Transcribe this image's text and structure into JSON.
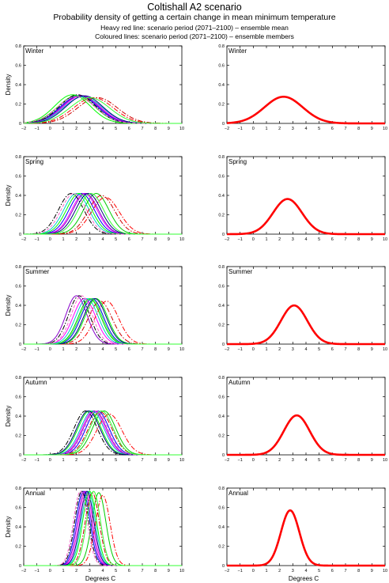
{
  "title": "Coltishall A2 scenario",
  "subtitle": "Probability density of getting a certain change in mean minimum temperature",
  "note_heavy": "Heavy red line: scenario period (2071–2100) – ensemble mean",
  "note_coloured": "Coloured lines: scenario period (2071–2100) – ensemble members",
  "colors": {
    "mean": "#ff0000",
    "members": [
      "#00cc00",
      "#0000ff",
      "#ff00ff",
      "#00cccc",
      "#000000",
      "#ff0000",
      "#8800cc",
      "#cc0000",
      "#00ff00",
      "#000080",
      "#ff66cc",
      "#33ff33"
    ]
  },
  "chart_data": [
    {
      "type": "line",
      "panel": "members",
      "season": "Winter",
      "ylabel": "Density",
      "xlabel": "",
      "xlim": [
        -2,
        10
      ],
      "ylim": [
        0,
        0.8
      ],
      "xticks": [
        "−2",
        "−1",
        "0",
        "1",
        "2",
        "3",
        "4",
        "5",
        "6",
        "7",
        "8",
        "9",
        "10"
      ],
      "yticks": [
        "0",
        "0.2",
        "0.4",
        "0.6",
        "0.8"
      ],
      "members": [
        {
          "mu": 2.0,
          "sigma": 1.4
        },
        {
          "mu": 2.2,
          "sigma": 1.4
        },
        {
          "mu": 2.4,
          "sigma": 1.4
        },
        {
          "mu": 2.5,
          "sigma": 1.45
        },
        {
          "mu": 2.1,
          "sigma": 1.35
        },
        {
          "mu": 3.3,
          "sigma": 1.5
        },
        {
          "mu": 2.3,
          "sigma": 1.4
        },
        {
          "mu": 3.6,
          "sigma": 1.5
        },
        {
          "mu": 1.7,
          "sigma": 1.35
        },
        {
          "mu": 2.6,
          "sigma": 1.4
        },
        {
          "mu": 2.0,
          "sigma": 1.45
        },
        {
          "mu": 3.0,
          "sigma": 1.5
        }
      ]
    },
    {
      "type": "line",
      "panel": "mean",
      "season": "Winter",
      "ylabel": "",
      "xlabel": "",
      "xlim": [
        -2,
        10
      ],
      "ylim": [
        0,
        0.8
      ],
      "xticks": [
        "−2",
        "−1",
        "0",
        "1",
        "2",
        "3",
        "4",
        "5",
        "6",
        "7",
        "8",
        "9",
        "10"
      ],
      "yticks": [
        "0",
        "0.2",
        "0.4",
        "0.6",
        "0.8"
      ],
      "mean": {
        "mu": 2.3,
        "sigma": 1.45
      }
    },
    {
      "type": "line",
      "panel": "members",
      "season": "Spring",
      "ylabel": "Density",
      "xlabel": "",
      "xlim": [
        -2,
        10
      ],
      "ylim": [
        0,
        0.8
      ],
      "xticks": [
        "−2",
        "−1",
        "0",
        "1",
        "2",
        "3",
        "4",
        "5",
        "6",
        "7",
        "8",
        "9",
        "10"
      ],
      "yticks": [
        "0",
        "0.2",
        "0.4",
        "0.6",
        "0.8"
      ],
      "members": [
        {
          "mu": 3.5,
          "sigma": 0.95
        },
        {
          "mu": 2.4,
          "sigma": 0.95
        },
        {
          "mu": 2.6,
          "sigma": 0.95
        },
        {
          "mu": 2.0,
          "sigma": 0.95
        },
        {
          "mu": 1.6,
          "sigma": 0.95
        },
        {
          "mu": 4.2,
          "sigma": 1.05
        },
        {
          "mu": 2.7,
          "sigma": 0.95
        },
        {
          "mu": 3.9,
          "sigma": 1.0
        },
        {
          "mu": 2.2,
          "sigma": 0.95
        },
        {
          "mu": 2.9,
          "sigma": 0.95
        },
        {
          "mu": 1.8,
          "sigma": 0.95
        },
        {
          "mu": 3.1,
          "sigma": 0.95
        }
      ]
    },
    {
      "type": "line",
      "panel": "mean",
      "season": "Spring",
      "ylabel": "",
      "xlabel": "",
      "xlim": [
        -2,
        10
      ],
      "ylim": [
        0,
        0.8
      ],
      "xticks": [
        "−2",
        "−1",
        "0",
        "1",
        "2",
        "3",
        "4",
        "5",
        "6",
        "7",
        "8",
        "9",
        "10"
      ],
      "yticks": [
        "0",
        "0.2",
        "0.4",
        "0.6",
        "0.8"
      ],
      "mean": {
        "mu": 2.6,
        "sigma": 1.1
      }
    },
    {
      "type": "line",
      "panel": "members",
      "season": "Summer",
      "ylabel": "Density",
      "xlabel": "",
      "xlim": [
        -2,
        10
      ],
      "ylim": [
        0,
        0.8
      ],
      "xticks": [
        "−2",
        "−1",
        "0",
        "1",
        "2",
        "3",
        "4",
        "5",
        "6",
        "7",
        "8",
        "9",
        "10"
      ],
      "yticks": [
        "0",
        "0.2",
        "0.4",
        "0.6",
        "0.8"
      ],
      "members": [
        {
          "mu": 3.0,
          "sigma": 0.85
        },
        {
          "mu": 3.2,
          "sigma": 0.85
        },
        {
          "mu": 2.6,
          "sigma": 0.85
        },
        {
          "mu": 2.8,
          "sigma": 0.85
        },
        {
          "mu": 2.2,
          "sigma": 0.8
        },
        {
          "mu": 4.3,
          "sigma": 0.9
        },
        {
          "mu": 2.0,
          "sigma": 0.8
        },
        {
          "mu": 3.8,
          "sigma": 0.9
        },
        {
          "mu": 3.5,
          "sigma": 0.85
        },
        {
          "mu": 3.4,
          "sigma": 0.85
        },
        {
          "mu": 2.4,
          "sigma": 0.8
        },
        {
          "mu": 3.1,
          "sigma": 0.85
        }
      ]
    },
    {
      "type": "line",
      "panel": "mean",
      "season": "Summer",
      "ylabel": "",
      "xlabel": "",
      "xlim": [
        -2,
        10
      ],
      "ylim": [
        0,
        0.8
      ],
      "xticks": [
        "−2",
        "−1",
        "0",
        "1",
        "2",
        "3",
        "4",
        "5",
        "6",
        "7",
        "8",
        "9",
        "10"
      ],
      "yticks": [
        "0",
        "0.2",
        "0.4",
        "0.6",
        "0.8"
      ],
      "mean": {
        "mu": 3.1,
        "sigma": 1.0
      }
    },
    {
      "type": "line",
      "panel": "members",
      "season": "Autumn",
      "ylabel": "Density",
      "xlabel": "",
      "xlim": [
        -2,
        10
      ],
      "ylim": [
        0,
        0.8
      ],
      "xticks": [
        "−2",
        "−1",
        "0",
        "1",
        "2",
        "3",
        "4",
        "5",
        "6",
        "7",
        "8",
        "9",
        "10"
      ],
      "yticks": [
        "0",
        "0.2",
        "0.4",
        "0.6",
        "0.8"
      ],
      "members": [
        {
          "mu": 4.1,
          "sigma": 0.88
        },
        {
          "mu": 3.6,
          "sigma": 0.88
        },
        {
          "mu": 3.3,
          "sigma": 0.88
        },
        {
          "mu": 3.2,
          "sigma": 0.88
        },
        {
          "mu": 2.7,
          "sigma": 0.88
        },
        {
          "mu": 4.5,
          "sigma": 0.95
        },
        {
          "mu": 3.4,
          "sigma": 0.88
        },
        {
          "mu": 3.8,
          "sigma": 0.9
        },
        {
          "mu": 3.0,
          "sigma": 0.88
        },
        {
          "mu": 2.9,
          "sigma": 0.88
        },
        {
          "mu": 3.5,
          "sigma": 0.88
        },
        {
          "mu": 3.9,
          "sigma": 0.88
        }
      ]
    },
    {
      "type": "line",
      "panel": "mean",
      "season": "Autumn",
      "ylabel": "",
      "xlabel": "",
      "xlim": [
        -2,
        10
      ],
      "ylim": [
        0,
        0.8
      ],
      "xticks": [
        "−2",
        "−1",
        "0",
        "1",
        "2",
        "3",
        "4",
        "5",
        "6",
        "7",
        "8",
        "9",
        "10"
      ],
      "yticks": [
        "0",
        "0.2",
        "0.4",
        "0.6",
        "0.8"
      ],
      "mean": {
        "mu": 3.3,
        "sigma": 0.98
      }
    },
    {
      "type": "line",
      "panel": "members",
      "season": "Annual",
      "ylabel": "Density",
      "xlabel": "Degrees C",
      "xlim": [
        -2,
        10
      ],
      "ylim": [
        0,
        0.8
      ],
      "xticks": [
        "−2",
        "−1",
        "0",
        "1",
        "2",
        "3",
        "4",
        "5",
        "6",
        "7",
        "8",
        "9",
        "10"
      ],
      "yticks": [
        "0",
        "0.2",
        "0.4",
        "0.6",
        "0.8"
      ],
      "members": [
        {
          "mu": 3.7,
          "sigma": 0.53
        },
        {
          "mu": 2.5,
          "sigma": 0.52
        },
        {
          "mu": 2.7,
          "sigma": 0.52
        },
        {
          "mu": 2.9,
          "sigma": 0.52
        },
        {
          "mu": 2.4,
          "sigma": 0.52
        },
        {
          "mu": 4.0,
          "sigma": 0.55
        },
        {
          "mu": 2.6,
          "sigma": 0.52
        },
        {
          "mu": 3.2,
          "sigma": 0.53
        },
        {
          "mu": 3.0,
          "sigma": 0.52
        },
        {
          "mu": 2.8,
          "sigma": 0.52
        },
        {
          "mu": 2.3,
          "sigma": 0.52
        },
        {
          "mu": 3.3,
          "sigma": 0.52
        }
      ]
    },
    {
      "type": "line",
      "panel": "mean",
      "season": "Annual",
      "ylabel": "",
      "xlabel": "Degrees C",
      "xlim": [
        -2,
        10
      ],
      "ylim": [
        0,
        0.8
      ],
      "xticks": [
        "−2",
        "−1",
        "0",
        "1",
        "2",
        "3",
        "4",
        "5",
        "6",
        "7",
        "8",
        "9",
        "10"
      ],
      "yticks": [
        "0",
        "0.2",
        "0.4",
        "0.6",
        "0.8"
      ],
      "mean": {
        "mu": 2.8,
        "sigma": 0.7
      }
    }
  ]
}
